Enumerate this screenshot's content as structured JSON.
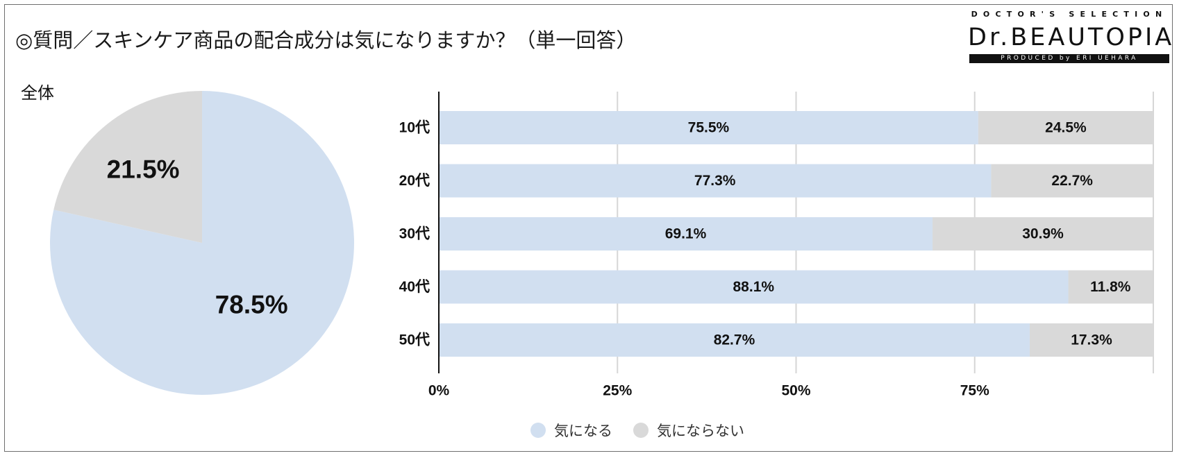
{
  "title": "◎質問／スキンケア商品の配合成分は気になりますか？（単一回答）",
  "logo": {
    "top": "DOCTOR'S SELECTION",
    "main": "Dr.BEAUTOPIA",
    "bar": "PRODUCED by ERI UEHARA"
  },
  "colors": {
    "yes": "#d1dff0",
    "no": "#d9d9d9",
    "axis": "#111111",
    "grid": "#d6d6d6"
  },
  "legend": [
    {
      "label": "気になる",
      "color": "#d1dff0"
    },
    {
      "label": "気にならない",
      "color": "#d9d9d9"
    }
  ],
  "chart_data": [
    {
      "type": "pie",
      "title": "全体",
      "slices": [
        {
          "label": "気になる",
          "value": 78.5,
          "display": "78.5%"
        },
        {
          "label": "気にならない",
          "value": 21.5,
          "display": "21.5%"
        }
      ]
    },
    {
      "type": "bar",
      "orientation": "horizontal",
      "stacked": true,
      "categories": [
        "10代",
        "20代",
        "30代",
        "40代",
        "50代"
      ],
      "series": [
        {
          "name": "気になる",
          "values": [
            75.5,
            77.3,
            69.1,
            88.1,
            82.7
          ],
          "labels": [
            "75.5%",
            "77.3%",
            "69.1%",
            "88.1%",
            "82.7%"
          ]
        },
        {
          "name": "気にならない",
          "values": [
            24.5,
            22.7,
            30.9,
            11.8,
            17.3
          ],
          "labels": [
            "24.5%",
            "22.7%",
            "30.9%",
            "11.8%",
            "17.3%"
          ]
        }
      ],
      "xticks": [
        "0%",
        "25%",
        "50%",
        "75%"
      ],
      "xlim": [
        0,
        100
      ],
      "grid": true,
      "legend": "bottom"
    }
  ]
}
